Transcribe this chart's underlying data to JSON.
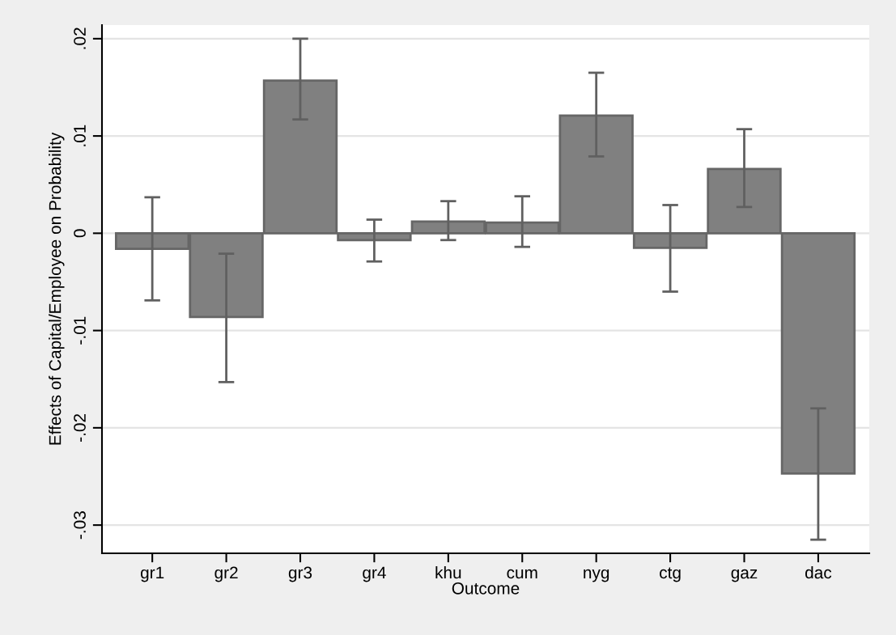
{
  "chart_data": {
    "type": "bar",
    "xlabel": "Outcome",
    "ylabel": "Effects of Capital/Employee on Probability",
    "categories": [
      "gr1",
      "gr2",
      "gr3",
      "gr4",
      "khu",
      "cum",
      "nyg",
      "ctg",
      "gaz",
      "dac"
    ],
    "values": [
      -0.0016,
      -0.0086,
      0.0157,
      -0.0007,
      0.0012,
      0.0011,
      0.0121,
      -0.0015,
      0.0066,
      -0.0247
    ],
    "errors": [
      [
        -0.0069,
        0.0037
      ],
      [
        -0.0153,
        -0.0021
      ],
      [
        0.0117,
        0.02
      ],
      [
        -0.0029,
        0.0014
      ],
      [
        -0.0007,
        0.0033
      ],
      [
        -0.0014,
        0.0038
      ],
      [
        0.0079,
        0.0165
      ],
      [
        -0.006,
        0.0029
      ],
      [
        0.0027,
        0.0107
      ],
      [
        -0.0315,
        -0.018
      ]
    ],
    "color": "#808080",
    "ylim": [
      -0.0329,
      0.0214
    ],
    "yticks": [
      {
        "value": -0.03,
        "label": "-.03"
      },
      {
        "value": -0.02,
        "label": "-.02"
      },
      {
        "value": -0.01,
        "label": "-.01"
      },
      0,
      {
        "value": 0.01,
        "label": ".01"
      },
      {
        "value": 0.02,
        "label": ".02"
      }
    ],
    "grid": "y",
    "legend": false
  }
}
